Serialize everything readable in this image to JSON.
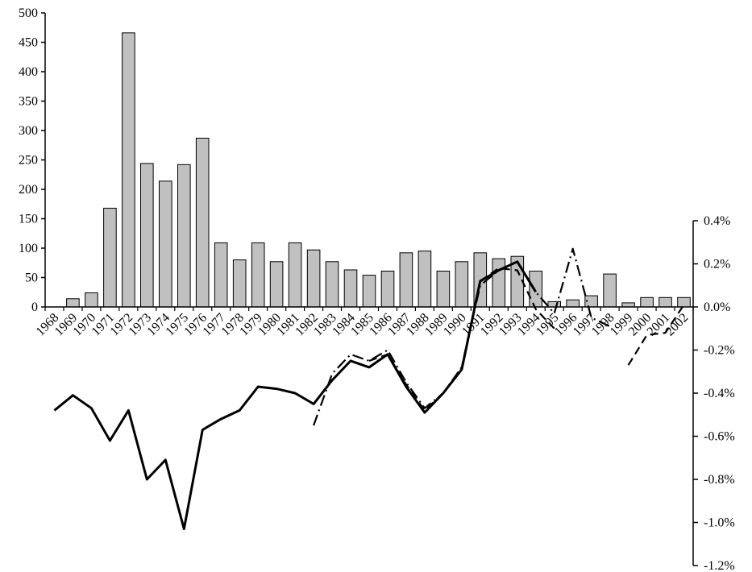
{
  "chart_data": {
    "type": "bar+line",
    "categories": [
      "1968",
      "1969",
      "1970",
      "1971",
      "1972",
      "1973",
      "1974",
      "1975",
      "1976",
      "1977",
      "1978",
      "1979",
      "1980",
      "1981",
      "1982",
      "1983",
      "1984",
      "1985",
      "1986",
      "1987",
      "1988",
      "1989",
      "1990",
      "1991",
      "1992",
      "1993",
      "1994",
      "1995",
      "1996",
      "1997",
      "1998",
      "1999",
      "2000",
      "2001",
      "2002"
    ],
    "bars": {
      "axis": "left",
      "values": [
        0,
        14,
        24,
        168,
        466,
        244,
        214,
        242,
        287,
        109,
        80,
        109,
        77,
        109,
        97,
        77,
        63,
        54,
        61,
        92,
        95,
        61,
        77,
        92,
        82,
        86,
        61,
        9,
        12,
        19,
        56,
        7,
        16,
        16,
        16
      ],
      "color": "#c0c0c0"
    },
    "left_axis": {
      "min": 0,
      "max": 500,
      "step": 50,
      "ticks": [
        "0",
        "50",
        "100",
        "150",
        "200",
        "250",
        "300",
        "350",
        "400",
        "450",
        "500"
      ]
    },
    "right_axis": {
      "min": -1.2,
      "max": 0.4,
      "step": 0.2,
      "ticks": [
        "0.4%",
        "0.2%",
        "0.0%",
        "-0.2%",
        "-0.4%",
        "-0.6%",
        "-0.8%",
        "-1.0%",
        "-1.2%"
      ]
    },
    "lines": [
      {
        "style": "solid",
        "axis": "right",
        "values": [
          -0.48,
          -0.41,
          -0.47,
          -0.62,
          -0.48,
          -0.8,
          -0.71,
          -1.03,
          -0.57,
          -0.52,
          -0.48,
          -0.37,
          -0.38,
          -0.4,
          -0.45,
          -0.34,
          -0.25,
          -0.28,
          -0.22,
          -0.37,
          -0.49,
          -0.4,
          -0.29,
          0.12,
          0.17,
          0.21,
          0.07,
          null,
          null,
          null,
          null,
          null,
          null,
          null,
          null
        ]
      },
      {
        "style": "dash-dot",
        "axis": "right",
        "values": [
          null,
          null,
          null,
          null,
          null,
          null,
          null,
          null,
          null,
          null,
          null,
          null,
          null,
          null,
          -0.55,
          -0.31,
          -0.22,
          -0.25,
          -0.2,
          -0.35,
          -0.47,
          -0.4,
          -0.28,
          0.1,
          0.17,
          0.21,
          0.07,
          -0.03,
          0.27,
          -0.05,
          -0.09,
          null,
          null,
          null,
          null
        ]
      },
      {
        "style": "dashed",
        "axis": "right",
        "values": [
          null,
          null,
          null,
          null,
          null,
          null,
          null,
          null,
          null,
          null,
          null,
          null,
          null,
          null,
          null,
          null,
          null,
          -0.25,
          -0.22,
          -0.36,
          -0.48,
          -0.4,
          -0.28,
          0.12,
          0.18,
          0.17,
          -0.01,
          -0.1,
          null,
          null,
          null,
          -0.27,
          -0.13,
          -0.12,
          0.01
        ]
      }
    ],
    "grid": false,
    "legend": "none"
  }
}
